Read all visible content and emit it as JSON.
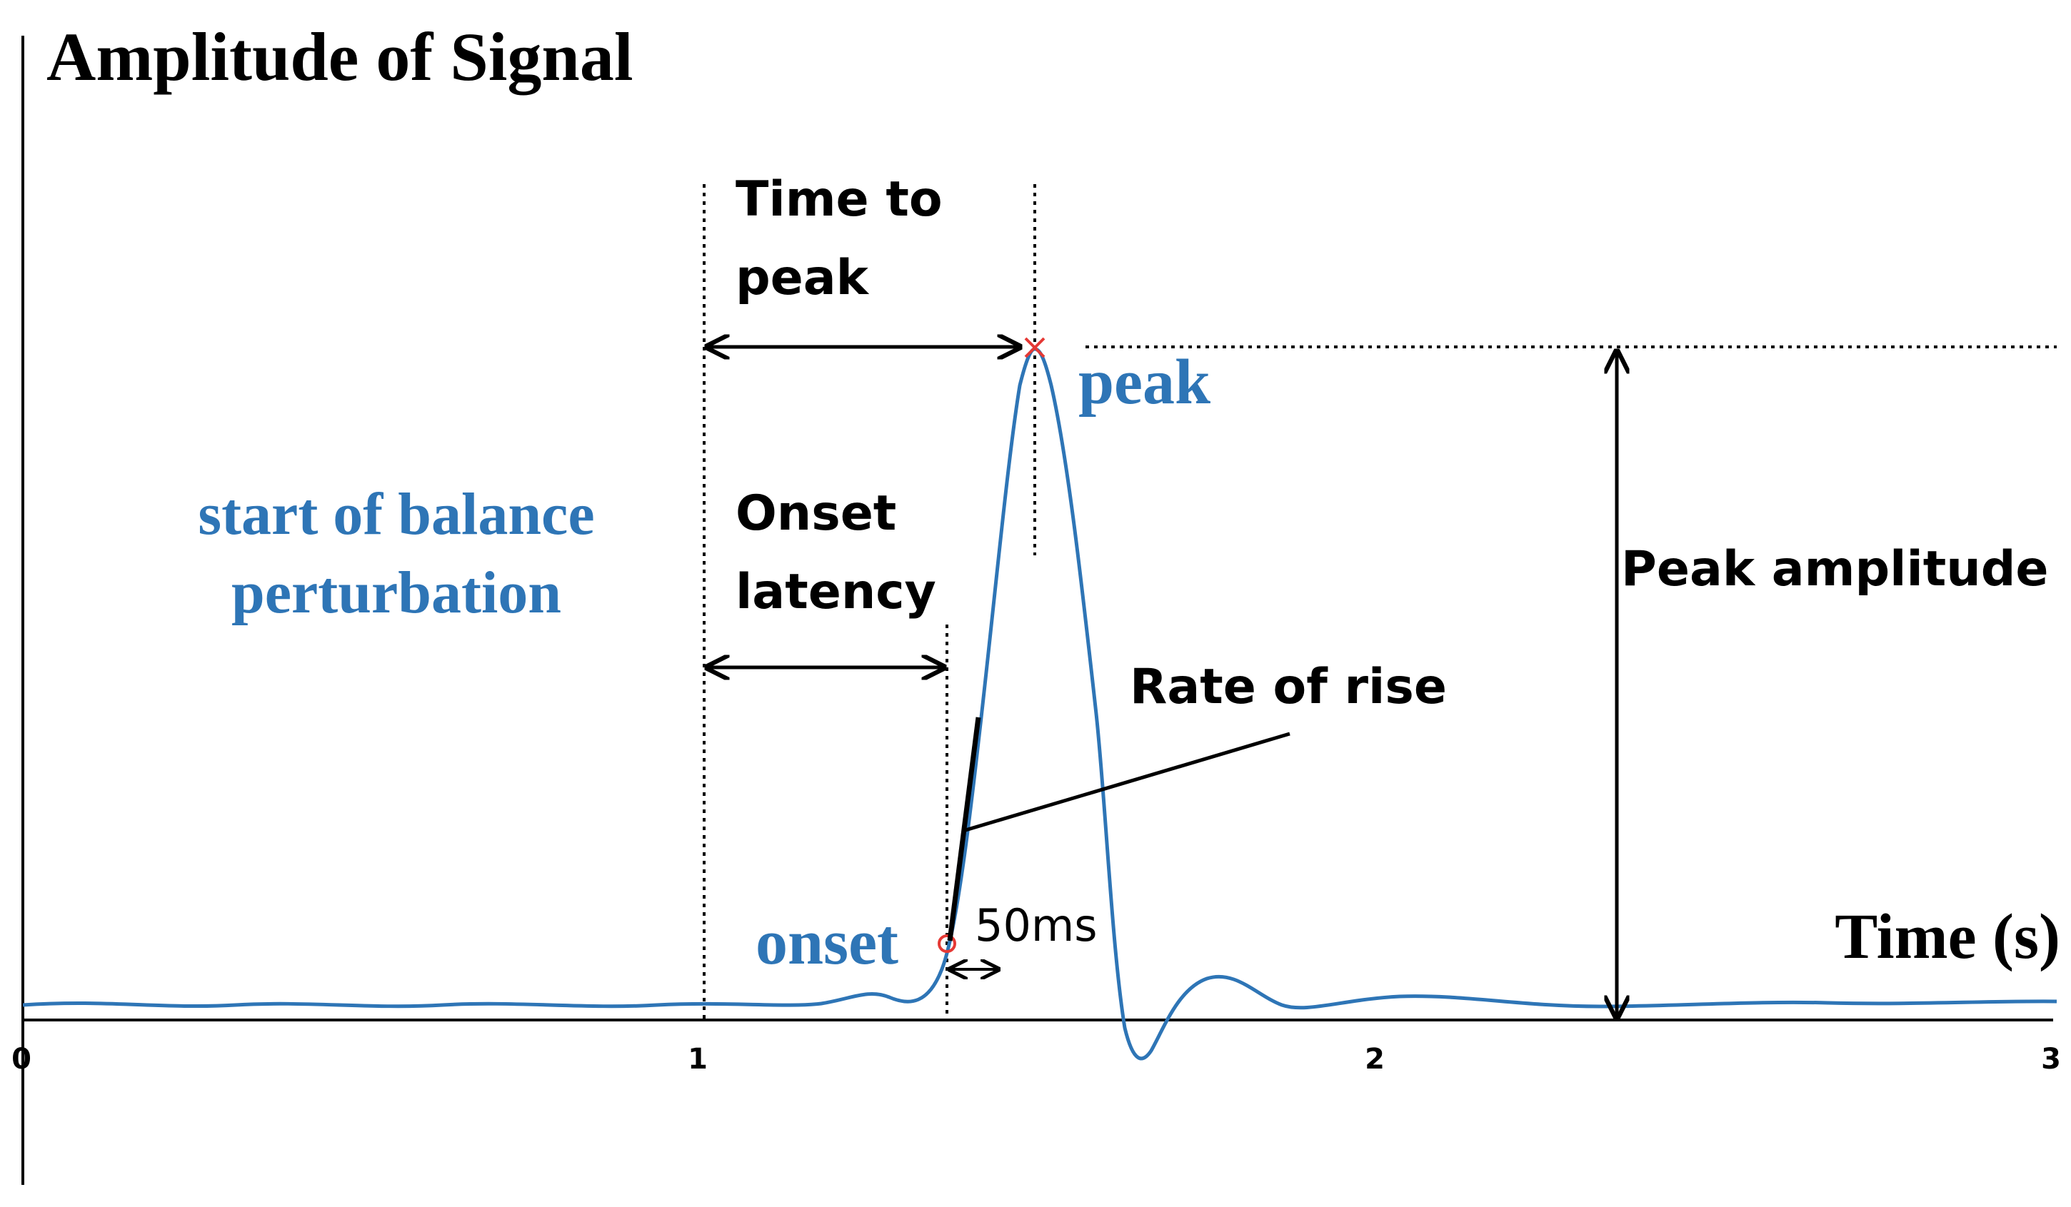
{
  "title": "Amplitude of Signal",
  "x_axis_label": "Time (s)",
  "x_ticks": [
    "0",
    "1",
    "2",
    "3"
  ],
  "x_range": [
    0,
    3
  ],
  "colors": {
    "signal": "#2E75B6",
    "peak_marker": "#E53935",
    "onset_marker": "#E53935",
    "annotation": "#000000"
  },
  "labels": {
    "start_line1": "start of balance",
    "start_line2": "perturbation",
    "peak": "peak",
    "onset": "onset",
    "time_to_peak_line1": "Time to",
    "time_to_peak_line2": "peak",
    "onset_latency_line1": "Onset",
    "onset_latency_line2": "latency",
    "rate_of_rise": "Rate of rise",
    "peak_amplitude": "Peak amplitude",
    "window": "50ms"
  },
  "events": {
    "perturbation_time": 1.0,
    "onset_time": 1.37,
    "peak_time": 1.5,
    "window_ms": 50
  }
}
